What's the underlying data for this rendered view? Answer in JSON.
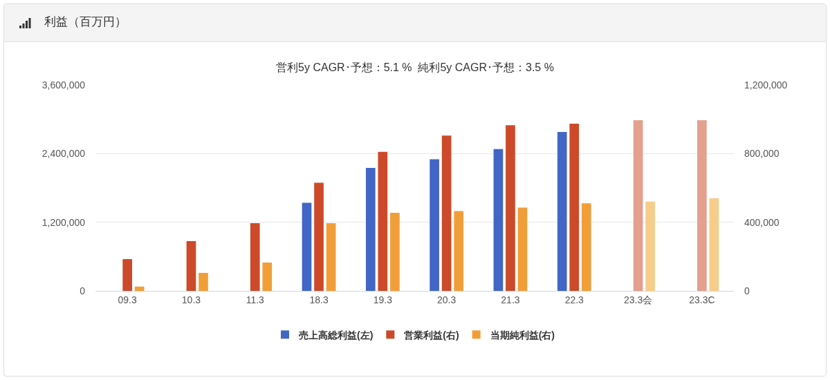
{
  "chart_data": {
    "type": "bar",
    "title": "利益（百万円）",
    "subtitle": "営利5y CAGR･予想：5.1 %  純利5y CAGR･予想：3.5 %",
    "categories": [
      "09.3",
      "10.3",
      "11.3",
      "18.3",
      "19.3",
      "20.3",
      "21.3",
      "22.3",
      "23.3会",
      "23.3C"
    ],
    "series": [
      {
        "name": "売上高総利益(左)",
        "color": "#4166c5",
        "axis": "y",
        "values": [
          null,
          null,
          null,
          1540000,
          2150000,
          2300000,
          2480000,
          2780000,
          null,
          null
        ]
      },
      {
        "name": "営業利益(右)",
        "axis": "y2",
        "colors": [
          "#cc4a2a",
          "#cc4a2a",
          "#cc4a2a",
          "#cc4a2a",
          "#cc4a2a",
          "#cc4a2a",
          "#cc4a2a",
          "#cc4a2a",
          "#e3a08f",
          "#e3a08f"
        ],
        "values": [
          185000,
          290000,
          395000,
          630000,
          810000,
          905000,
          965000,
          975000,
          995000,
          995000
        ]
      },
      {
        "name": "当期純利益(右)",
        "axis": "y2",
        "colors": [
          "#f29e38",
          "#f29e38",
          "#f29e38",
          "#f29e38",
          "#f29e38",
          "#f29e38",
          "#f29e38",
          "#f29e38",
          "#f7cd8a",
          "#f7cd8a"
        ],
        "values": [
          25000,
          105000,
          165000,
          395000,
          455000,
          465000,
          485000,
          510000,
          520000,
          540000
        ]
      }
    ],
    "ylim": [
      0,
      3600000
    ],
    "yticks": [
      0,
      {
        "value": 1200000,
        "label": "1,200,000"
      },
      {
        "value": 2400000,
        "label": "2,400,000"
      },
      {
        "value": 3600000,
        "label": "3,600,000"
      }
    ],
    "y2lim": [
      0,
      1200000
    ],
    "y2ticks": [
      0,
      {
        "value": 400000,
        "label": "400,000"
      },
      {
        "value": 800000,
        "label": "800,000"
      },
      {
        "value": 1200000,
        "label": "1,200,000"
      }
    ],
    "grid": "y",
    "legend": "bottom"
  }
}
